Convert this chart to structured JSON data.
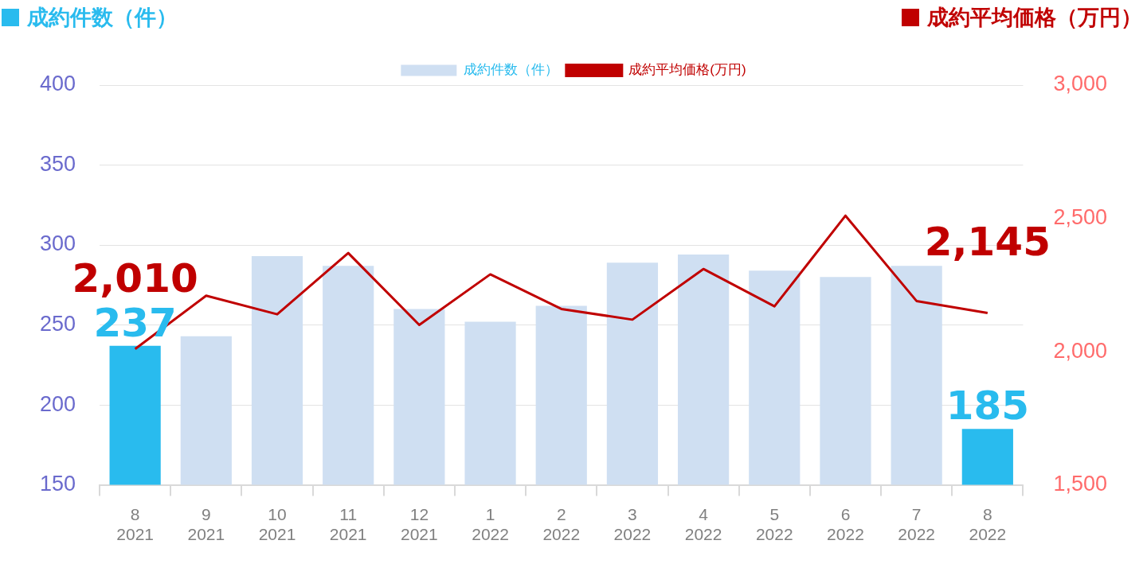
{
  "chart_data": {
    "type": "bar",
    "ylabel": "成約件数（件）",
    "y2label": "成約平均価格（万円）",
    "categories": [
      "8\n2021",
      "9\n2021",
      "10\n2021",
      "11\n2021",
      "12\n2021",
      "1\n2022",
      "2\n2022",
      "3\n2022",
      "4\n2022",
      "5\n2022",
      "6\n2022",
      "7\n2022",
      "8\n2022"
    ],
    "series": [
      {
        "name": "成約件数（件）",
        "color": "#cfdff2",
        "colors": [
          "#29bbee",
          "#cfdff2",
          "#cfdff2",
          "#cfdff2",
          "#cfdff2",
          "#cfdff2",
          "#cfdff2",
          "#cfdff2",
          "#cfdff2",
          "#cfdff2",
          "#cfdff2",
          "#cfdff2",
          "#29bbee"
        ],
        "values": [
          237,
          243,
          293,
          287,
          260,
          252,
          262,
          289,
          294,
          284,
          280,
          287,
          185
        ],
        "value_labels": [
          "237",
          null,
          null,
          null,
          null,
          null,
          null,
          null,
          null,
          null,
          null,
          null,
          "185"
        ]
      },
      {
        "type": "line",
        "name": "成約平均価格(万円)",
        "color": "#c00000",
        "axis": "y2",
        "values": [
          2010,
          2210,
          2140,
          2370,
          2100,
          2290,
          2160,
          2120,
          2310,
          2170,
          2510,
          2190,
          2145
        ],
        "value_labels": [
          "2,010",
          null,
          null,
          null,
          null,
          null,
          null,
          null,
          null,
          null,
          null,
          null,
          "2,145"
        ]
      }
    ],
    "ylim": [
      150,
      400
    ],
    "yticks": [
      150,
      200,
      250,
      300,
      350,
      400
    ],
    "y2lim": [
      1500,
      3000
    ],
    "y2ticks": [
      {
        "value": 1500,
        "label": "1,500"
      },
      {
        "value": 2000,
        "label": "2,000"
      },
      {
        "value": 2500,
        "label": "2,500"
      },
      {
        "value": 3000,
        "label": "3,000"
      }
    ],
    "grid": "y",
    "legend": "top",
    "marker": "none"
  }
}
